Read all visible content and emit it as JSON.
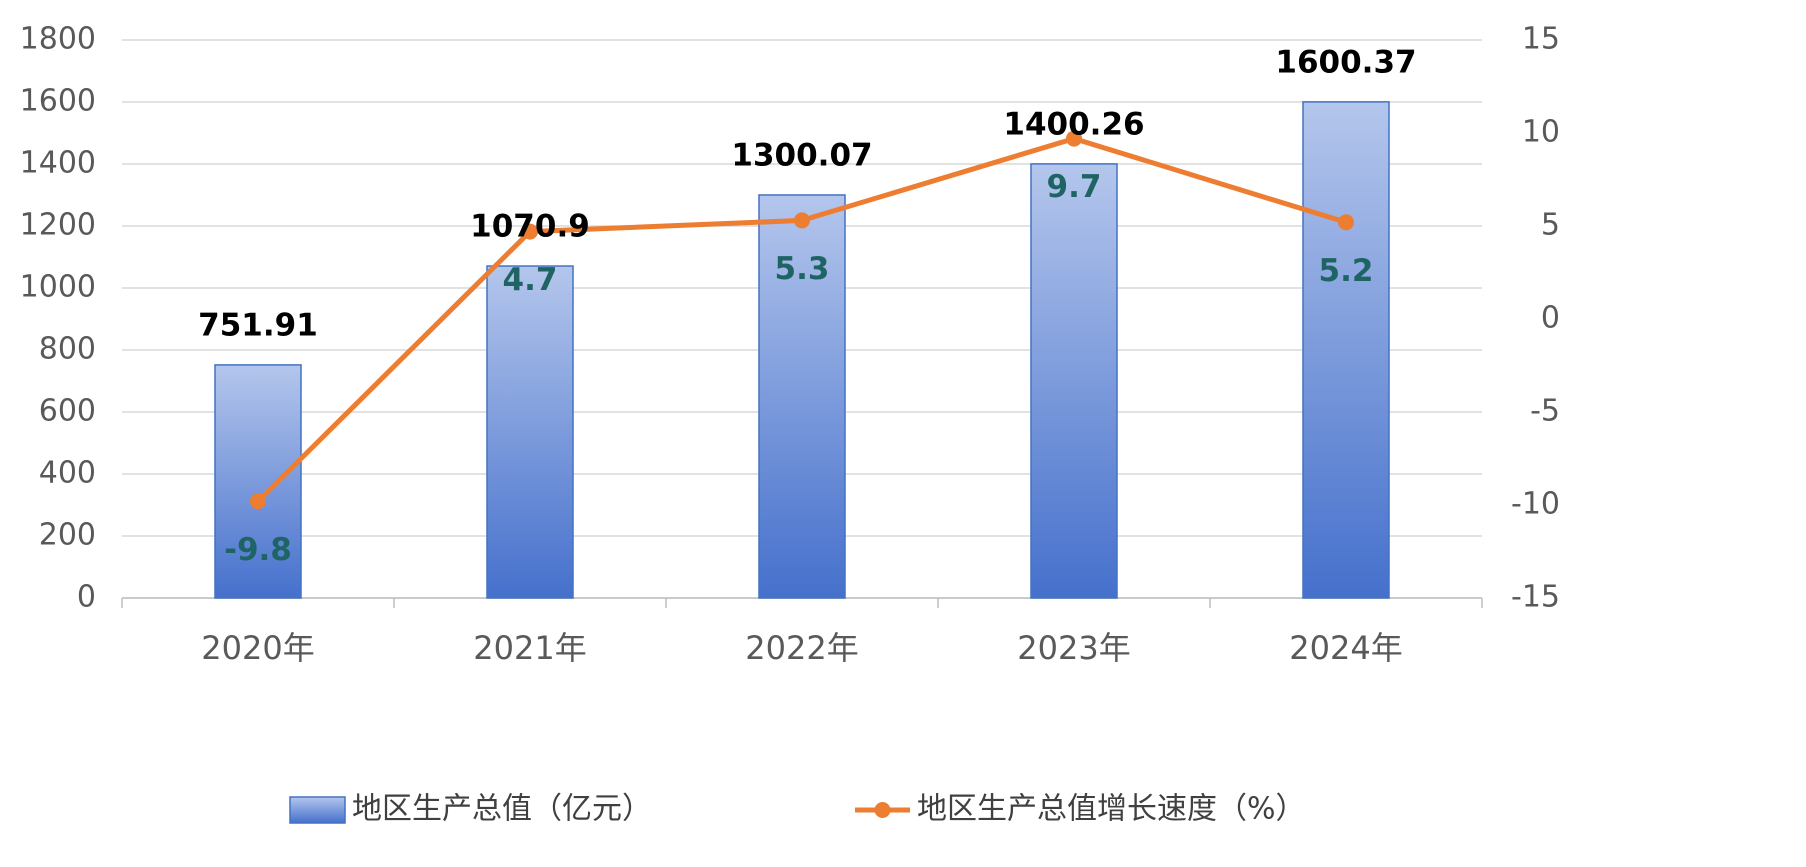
{
  "chart_data": {
    "type": "bar",
    "categories": [
      "2020年",
      "2021年",
      "2022年",
      "2023年",
      "2024年"
    ],
    "series": [
      {
        "name": "地区生产总值（亿元）",
        "type": "bar",
        "color": "#4472c4",
        "values": [
          751.91,
          1070.9,
          1300.07,
          1400.26,
          1600.37
        ]
      },
      {
        "name": "地区生产总值增长速度（%）",
        "type": "line",
        "axis": "y2",
        "color": "#ed7d31",
        "values": [
          -9.8,
          4.7,
          5.3,
          9.7,
          5.2
        ]
      }
    ],
    "ylim": [
      0,
      1800
    ],
    "yticks": [
      0,
      200,
      400,
      600,
      800,
      1000,
      1200,
      1400,
      1600,
      1800
    ],
    "y2lim": [
      -15,
      15
    ],
    "y2ticks": [
      -15,
      -10,
      -5,
      0,
      5,
      10,
      15
    ],
    "grid": true,
    "legend": "bottom"
  }
}
